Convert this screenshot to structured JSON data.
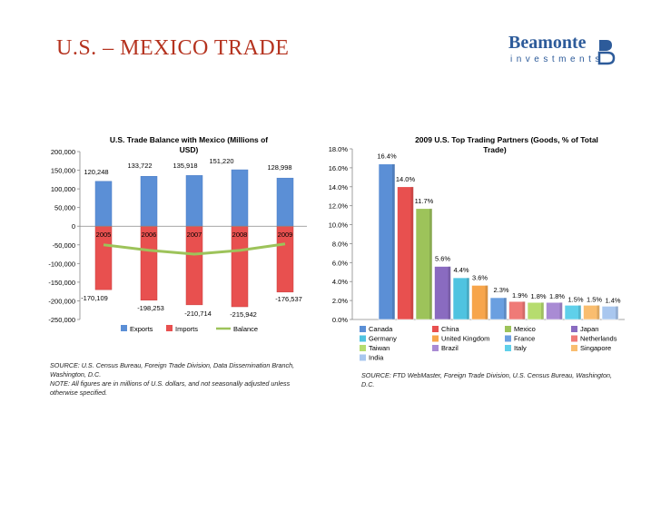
{
  "page": {
    "title": "U.S. – MEXICO TRADE"
  },
  "logo": {
    "name": "Beamonte",
    "subtitle": "investments",
    "colors": {
      "primary": "#2d5b9a"
    }
  },
  "chart_data": [
    {
      "type": "bar",
      "title": "U.S. Trade Balance with Mexico (Millions of USD)",
      "categories": [
        "2005",
        "2006",
        "2007",
        "2008",
        "2009"
      ],
      "series": [
        {
          "name": "Exports",
          "type": "bar",
          "color": "#5b8fd6",
          "values": [
            120248,
            133722,
            135918,
            151220,
            128998
          ],
          "labels": [
            "120,248",
            "133,722",
            "135,918",
            "151,220",
            "128,998"
          ]
        },
        {
          "name": "Imports",
          "type": "bar",
          "color": "#e8504f",
          "values": [
            -170109,
            -198253,
            -210714,
            -215942,
            -176537
          ],
          "labels": [
            "-170,109",
            "-198,253",
            "-210,714",
            "-215,942",
            "-176,537"
          ]
        },
        {
          "name": "Balance",
          "type": "line",
          "color": "#9dc35a",
          "values": [
            -49861,
            -64531,
            -74796,
            -64722,
            -47539
          ]
        }
      ],
      "ylim": [
        -250000,
        200000
      ],
      "yticks": [
        200000,
        150000,
        100000,
        50000,
        0,
        -50000,
        -100000,
        -150000,
        -200000,
        -250000
      ],
      "ytick_labels": [
        "200,000",
        "150,000",
        "100,000",
        "50,000",
        "0",
        "-50,000",
        "-100,000",
        "-150,000",
        "-200,000",
        "-250,000"
      ],
      "legend": "bottom",
      "grid": false,
      "source": "SOURCE: U.S. Census Bureau, Foreign Trade Division, Data Dissemination Branch, Washington, D.C.",
      "note": "NOTE: All figures are in millions of U.S. dollars, and not seasonally adjusted unless otherwise specified."
    },
    {
      "type": "bar",
      "title": "2009 U.S. Top Trading Partners (Goods, % of Total Trade)",
      "categories": [
        "Canada",
        "China",
        "Mexico",
        "Japan",
        "Germany",
        "United Kingdom",
        "France",
        "Netherlands",
        "Taiwan",
        "Brazil",
        "Italy",
        "Singapore",
        "India"
      ],
      "values": [
        16.4,
        14.0,
        11.7,
        5.6,
        4.4,
        3.6,
        2.3,
        1.9,
        1.8,
        1.8,
        1.5,
        1.5,
        1.4
      ],
      "labels": [
        "16.4%",
        "14.0%",
        "11.7%",
        "5.6%",
        "4.4%",
        "3.6%",
        "2.3%",
        "1.9%",
        "1.8%",
        "1.8%",
        "1.5%",
        "1.5%",
        "1.4%"
      ],
      "colors": [
        "#5b8fd6",
        "#e8504f",
        "#9dc35a",
        "#8a6bc0",
        "#4fc3e0",
        "#f7a54b",
        "#6a9fe0",
        "#ef7a77",
        "#b6dc6f",
        "#a98bd4",
        "#5fd0ea",
        "#f9bd6f",
        "#a9c7ef"
      ],
      "ylim": [
        0,
        18
      ],
      "yticks": [
        0,
        2,
        4,
        6,
        8,
        10,
        12,
        14,
        16,
        18
      ],
      "ytick_labels": [
        "0.0%",
        "2.0%",
        "4.0%",
        "6.0%",
        "8.0%",
        "10.0%",
        "12.0%",
        "14.0%",
        "16.0%",
        "18.0%"
      ],
      "legend": "bottom",
      "grid": false,
      "source": "SOURCE: FTD WebMaster, Foreign Trade Division, U.S. Census Bureau, Washington, D.C."
    }
  ]
}
